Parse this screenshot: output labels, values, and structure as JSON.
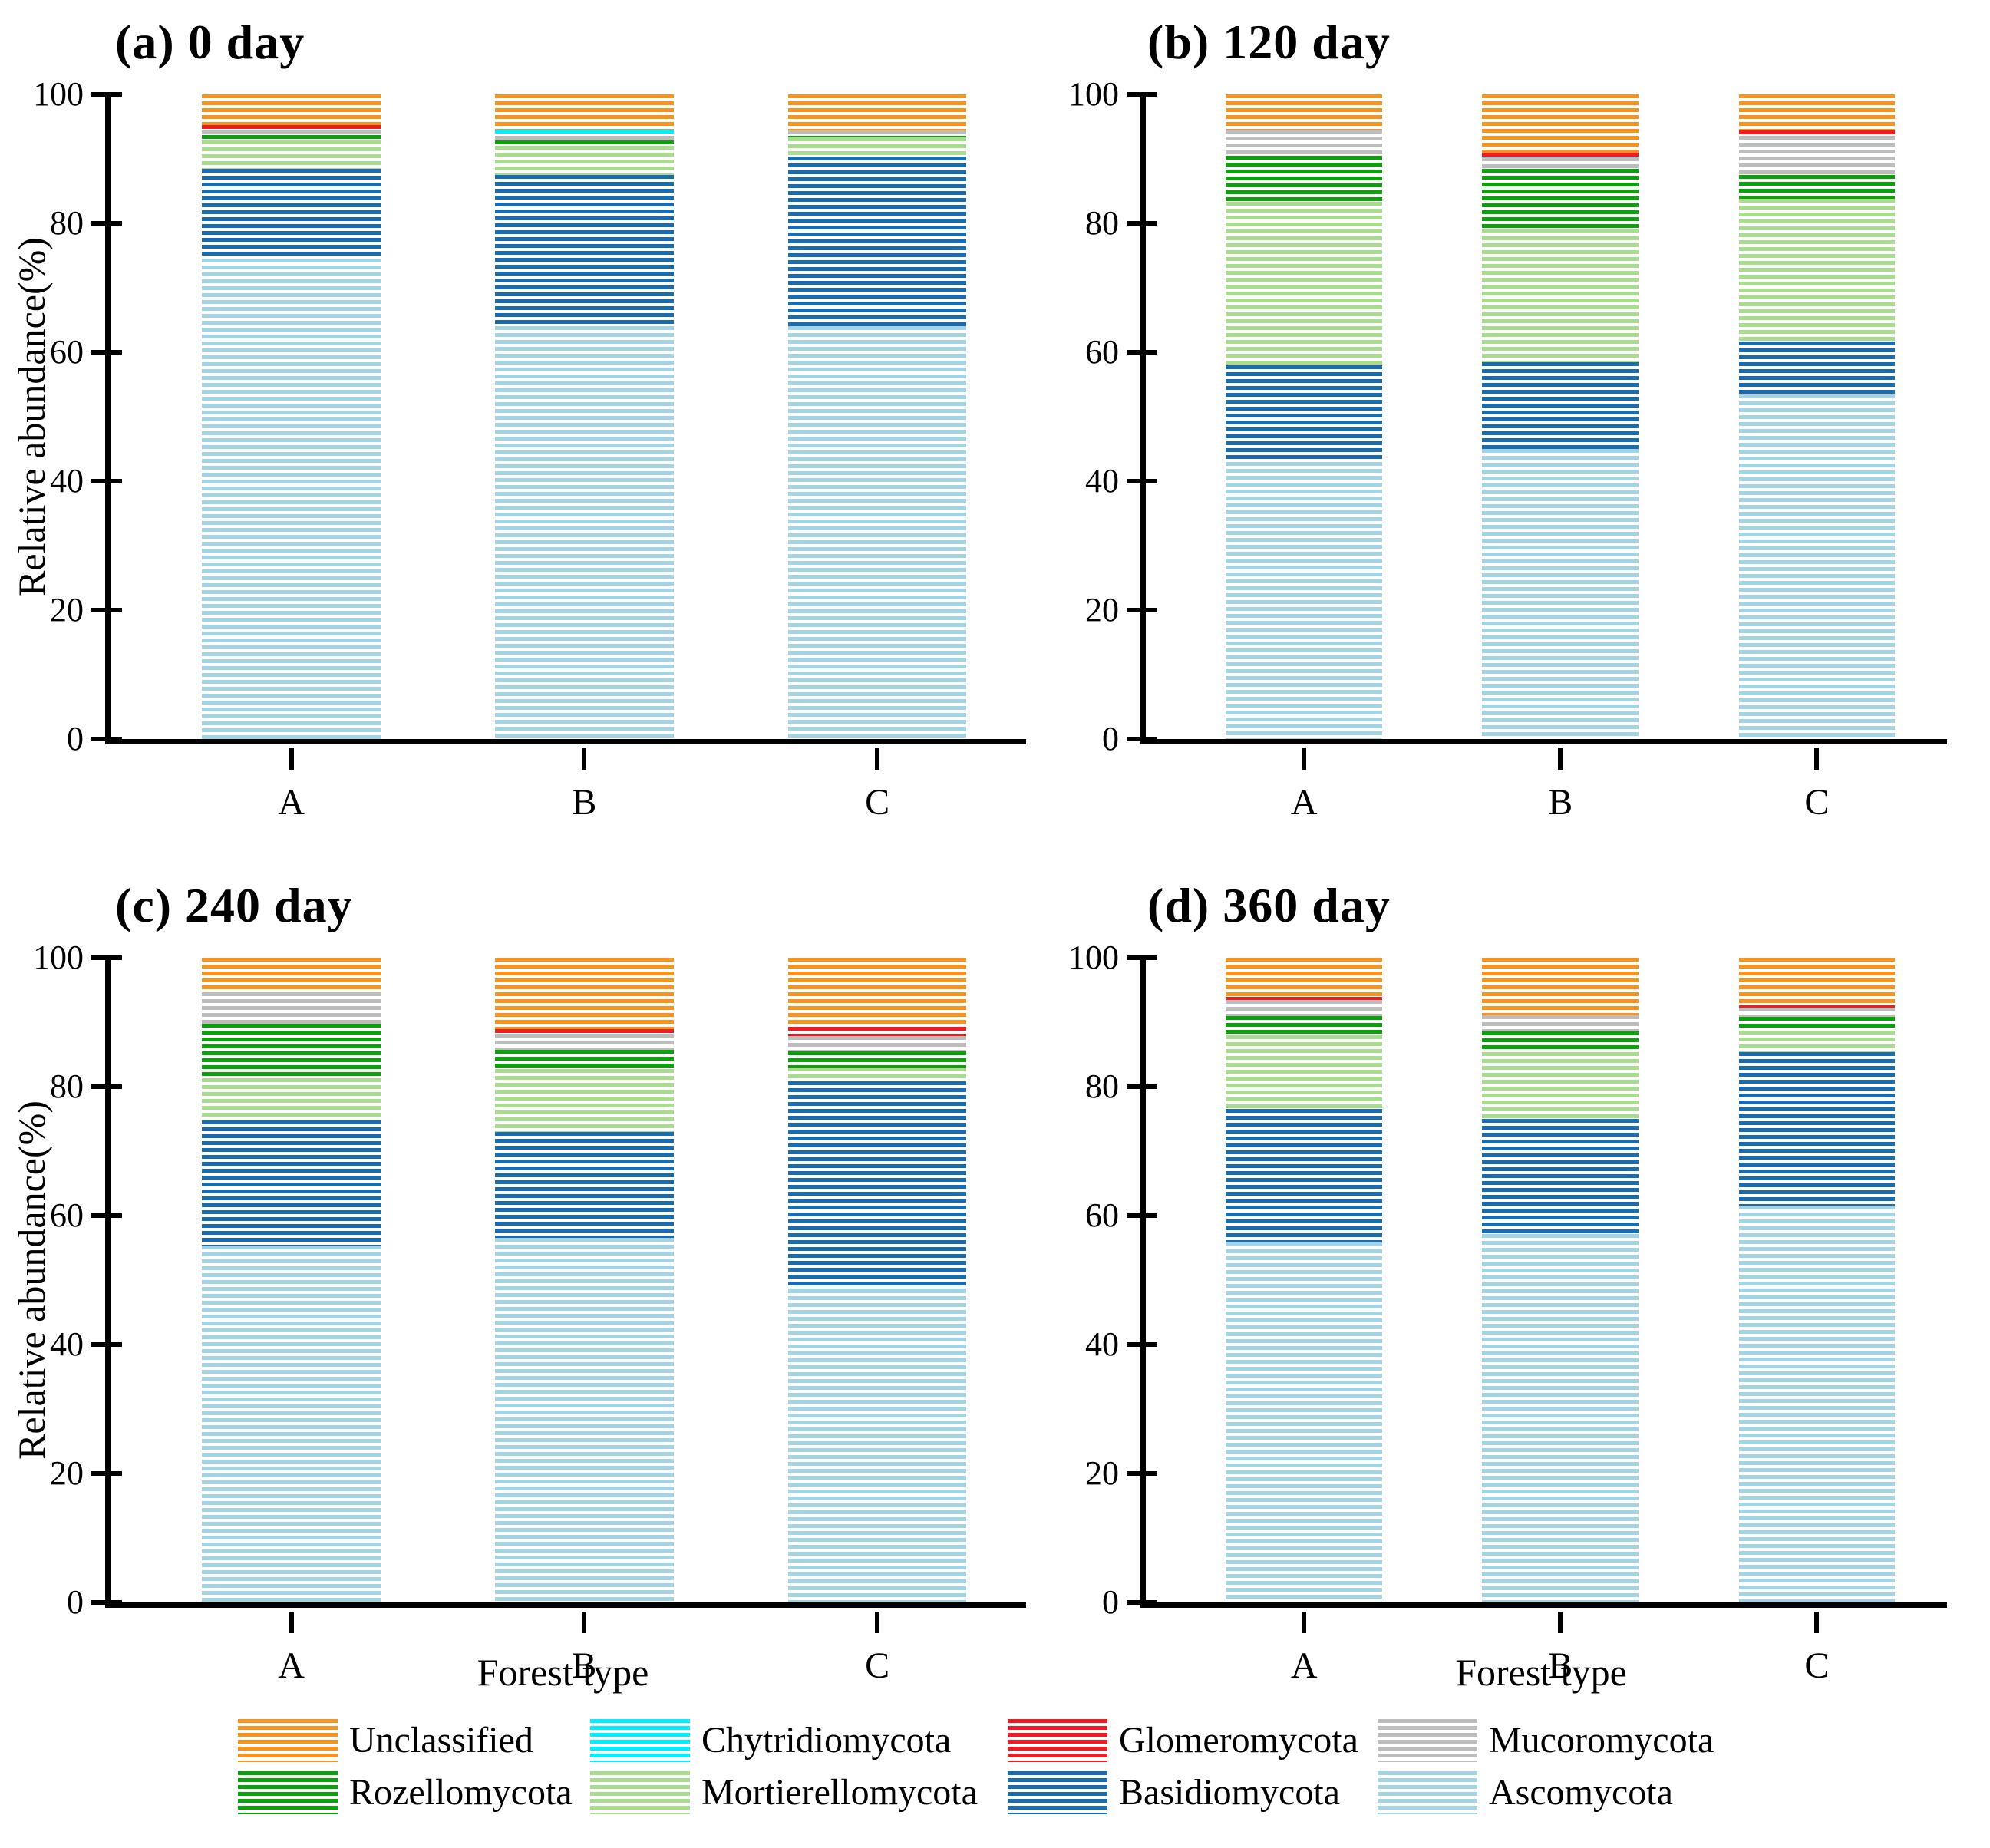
{
  "axis": {
    "ylabel": "Relative abundance(%)",
    "xlabel": "Forest type",
    "ytick_values": [
      0,
      20,
      40,
      60,
      80,
      100
    ],
    "ytick_labels": [
      "0",
      "20",
      "40",
      "60",
      "80",
      "100"
    ],
    "categories": [
      "A",
      "B",
      "C"
    ]
  },
  "chart_data": [
    {
      "type": "bar",
      "stacked": true,
      "title": "(a) 0 day",
      "ylabel": "Relative abundance(%)",
      "xlabel": "",
      "ylim": [
        0,
        100
      ],
      "grid": false,
      "hatch": "horizontal-stripes",
      "categories": [
        "A",
        "B",
        "C"
      ],
      "series": [
        {
          "name": "Ascomycota",
          "color": "#A4D4E4",
          "values": [
            74.5,
            64.0,
            64.0
          ]
        },
        {
          "name": "Basidiomycota",
          "color": "#1A6CB0",
          "values": [
            14.0,
            23.5,
            26.3
          ]
        },
        {
          "name": "Mortierellomycota",
          "color": "#A9DC8E",
          "values": [
            4.4,
            4.5,
            3.0
          ]
        },
        {
          "name": "Rozellomycota",
          "color": "#0DA00D",
          "values": [
            0.8,
            0.8,
            0.3
          ]
        },
        {
          "name": "Mucoromycota",
          "color": "#BDBDBD",
          "values": [
            0.7,
            0.8,
            0.8
          ]
        },
        {
          "name": "Glomeromycota",
          "color": "#EE1C23",
          "values": [
            0.8,
            0.0,
            0.0
          ]
        },
        {
          "name": "Chytridiomycota",
          "color": "#00EFFF",
          "values": [
            0.0,
            0.9,
            0.0
          ]
        },
        {
          "name": "Unclassified",
          "color": "#F79420",
          "values": [
            4.8,
            5.5,
            5.6
          ]
        }
      ]
    },
    {
      "type": "bar",
      "stacked": true,
      "title": "(b) 120 day",
      "ylabel": "",
      "xlabel": "",
      "ylim": [
        0,
        100
      ],
      "grid": false,
      "hatch": "horizontal-stripes",
      "categories": [
        "A",
        "B",
        "C"
      ],
      "series": [
        {
          "name": "Ascomycota",
          "color": "#A4D4E4",
          "values": [
            43.0,
            45.0,
            53.5
          ]
        },
        {
          "name": "Basidiomycota",
          "color": "#1A6CB0",
          "values": [
            15.0,
            13.5,
            8.2
          ]
        },
        {
          "name": "Mortierellomycota",
          "color": "#A9DC8E",
          "values": [
            25.3,
            20.5,
            22.1
          ]
        },
        {
          "name": "Rozellomycota",
          "color": "#0DA00D",
          "values": [
            7.2,
            9.4,
            3.7
          ]
        },
        {
          "name": "Mucoromycota",
          "color": "#BDBDBD",
          "values": [
            4.0,
            1.8,
            6.1
          ]
        },
        {
          "name": "Glomeromycota",
          "color": "#EE1C23",
          "values": [
            0.0,
            0.8,
            0.8
          ]
        },
        {
          "name": "Chytridiomycota",
          "color": "#00EFFF",
          "values": [
            0.0,
            0.0,
            0.0
          ]
        },
        {
          "name": "Unclassified",
          "color": "#F79420",
          "values": [
            5.5,
            9.0,
            5.6
          ]
        }
      ]
    },
    {
      "type": "bar",
      "stacked": true,
      "title": "(c) 240 day",
      "ylabel": "Relative abundance(%)",
      "xlabel": "Forest type",
      "ylim": [
        0,
        100
      ],
      "grid": false,
      "hatch": "horizontal-stripes",
      "categories": [
        "A",
        "B",
        "C"
      ],
      "series": [
        {
          "name": "Ascomycota",
          "color": "#A4D4E4",
          "values": [
            55.3,
            56.6,
            48.6
          ]
        },
        {
          "name": "Basidiomycota",
          "color": "#1A6CB0",
          "values": [
            19.5,
            16.4,
            32.2
          ]
        },
        {
          "name": "Mortierellomycota",
          "color": "#A9DC8E",
          "values": [
            6.5,
            9.7,
            2.2
          ]
        },
        {
          "name": "Rozellomycota",
          "color": "#0DA00D",
          "values": [
            8.5,
            3.0,
            2.5
          ]
        },
        {
          "name": "Mucoromycota",
          "color": "#BDBDBD",
          "values": [
            4.8,
            2.5,
            2.3
          ]
        },
        {
          "name": "Glomeromycota",
          "color": "#EE1C23",
          "values": [
            0.0,
            0.7,
            1.5
          ]
        },
        {
          "name": "Chytridiomycota",
          "color": "#00EFFF",
          "values": [
            0.0,
            0.0,
            0.0
          ]
        },
        {
          "name": "Unclassified",
          "color": "#F79420",
          "values": [
            5.4,
            11.1,
            10.7
          ]
        }
      ]
    },
    {
      "type": "bar",
      "stacked": true,
      "title": "(d) 360 day",
      "ylabel": "",
      "xlabel": "Forest type",
      "ylim": [
        0,
        100
      ],
      "grid": false,
      "hatch": "horizontal-stripes",
      "categories": [
        "A",
        "B",
        "C"
      ],
      "series": [
        {
          "name": "Ascomycota",
          "color": "#A4D4E4",
          "values": [
            55.8,
            57.2,
            61.5
          ]
        },
        {
          "name": "Basidiomycota",
          "color": "#1A6CB0",
          "values": [
            20.7,
            17.8,
            23.9
          ]
        },
        {
          "name": "Mortierellomycota",
          "color": "#A9DC8E",
          "values": [
            11.5,
            10.4,
            3.3
          ]
        },
        {
          "name": "Rozellomycota",
          "color": "#0DA00D",
          "values": [
            3.0,
            3.2,
            2.1
          ]
        },
        {
          "name": "Mucoromycota",
          "color": "#BDBDBD",
          "values": [
            2.4,
            2.5,
            1.5
          ]
        },
        {
          "name": "Glomeromycota",
          "color": "#EE1C23",
          "values": [
            0.5,
            0.0,
            0.3
          ]
        },
        {
          "name": "Chytridiomycota",
          "color": "#00EFFF",
          "values": [
            0.0,
            0.0,
            0.0
          ]
        },
        {
          "name": "Unclassified",
          "color": "#F79420",
          "values": [
            6.1,
            8.9,
            7.4
          ]
        }
      ]
    }
  ],
  "legend": {
    "rows": [
      [
        {
          "label": "Unclassified",
          "color": "#F79420"
        },
        {
          "label": "Chytridiomycota",
          "color": "#00EFFF"
        },
        {
          "label": "Glomeromycota",
          "color": "#EE1C23"
        },
        {
          "label": "Mucoromycota",
          "color": "#BDBDBD"
        }
      ],
      [
        {
          "label": "Rozellomycota",
          "color": "#0DA00D"
        },
        {
          "label": "Mortierellomycota",
          "color": "#A9DC8E"
        },
        {
          "label": "Basidiomycota",
          "color": "#1A6CB0"
        },
        {
          "label": "Ascomycota",
          "color": "#A4D4E4"
        }
      ]
    ]
  }
}
